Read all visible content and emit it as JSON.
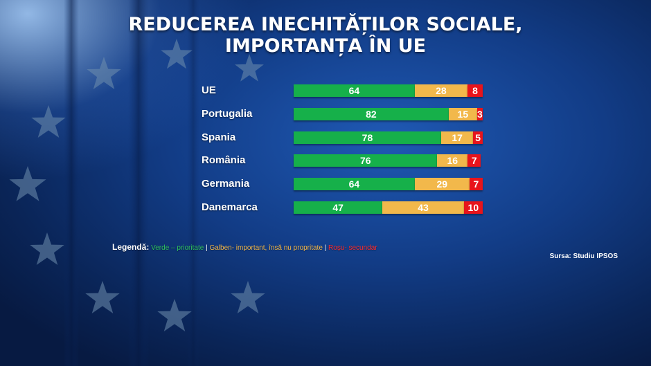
{
  "title": {
    "line1": "REDUCEREA INECHITĂȚILOR SOCIALE,",
    "line2": "IMPORTANȚA ÎN UE"
  },
  "chart_data": {
    "type": "bar",
    "stacked": true,
    "orientation": "horizontal",
    "categories": [
      "UE",
      "Portugalia",
      "Spania",
      "România",
      "Germania",
      "Danemarca"
    ],
    "series": [
      {
        "key": "verde",
        "color": "#16b04a",
        "values": [
          64,
          82,
          78,
          76,
          64,
          47
        ]
      },
      {
        "key": "galben",
        "color": "#f2b84b",
        "values": [
          28,
          15,
          17,
          16,
          29,
          43
        ]
      },
      {
        "key": "rosu",
        "color": "#e8141b",
        "values": [
          8,
          3,
          5,
          7,
          7,
          10
        ]
      }
    ],
    "xlim": [
      0,
      100
    ]
  },
  "legend": {
    "lead": "Legendă:",
    "green": "Verde – prioritate",
    "sep1": " | ",
    "yellow": "Galben- important, însă nu propritate",
    "sep2": " | ",
    "red": "Roșu- secundar"
  },
  "source": "Sursa: Studiu IPSOS"
}
